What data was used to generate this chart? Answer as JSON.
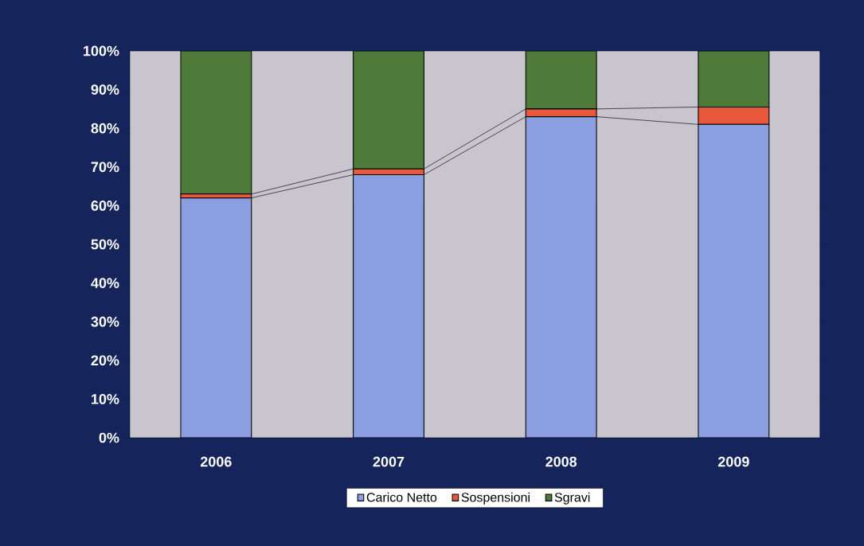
{
  "chart_data": {
    "type": "bar",
    "stacked": true,
    "categories": [
      "2006",
      "2007",
      "2008",
      "2009"
    ],
    "series": [
      {
        "name": "Carico Netto",
        "color": "#8a9ee0",
        "values": [
          62,
          68,
          83,
          81
        ]
      },
      {
        "name": "Sospensioni",
        "color": "#e8583a",
        "values": [
          1,
          1.5,
          2,
          4.5
        ]
      },
      {
        "name": "Sgravi",
        "color": "#4e7a3a",
        "values": [
          37,
          30.5,
          15,
          14.5
        ]
      }
    ],
    "ylim": [
      0,
      100
    ],
    "yticks": [
      {
        "value": 0,
        "label": "0%"
      },
      {
        "value": 10,
        "label": "10%"
      },
      {
        "value": 20,
        "label": "20%"
      },
      {
        "value": 30,
        "label": "30%"
      },
      {
        "value": 40,
        "label": "40%"
      },
      {
        "value": 50,
        "label": "50%"
      },
      {
        "value": 60,
        "label": "60%"
      },
      {
        "value": 70,
        "label": "70%"
      },
      {
        "value": 80,
        "label": "80%"
      },
      {
        "value": 90,
        "label": "90%"
      },
      {
        "value": 100,
        "label": "100%"
      }
    ],
    "legend": "bottom"
  }
}
